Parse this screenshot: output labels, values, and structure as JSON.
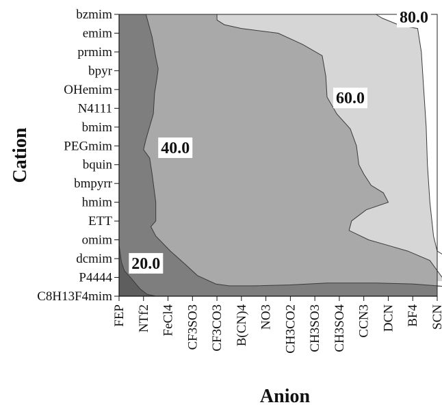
{
  "chart_data": {
    "type": "heatmap",
    "subtype": "filled-contour",
    "xlabel": "Anion",
    "ylabel": "Cation",
    "x_categories": [
      "FEP",
      "NTf2",
      "FeCl4",
      "CF3SO3",
      "CF3CO3",
      "B(CN)4",
      "NO3",
      "CH3CO2",
      "CH3SO3",
      "CH3SO4",
      "CCN3",
      "DCN",
      "BF4",
      "SCN"
    ],
    "y_categories": [
      "bzmim",
      "emim",
      "prmim",
      "bpyr",
      "OHemim",
      "N4111",
      "bmim",
      "PEGmim",
      "bquin",
      "bmpyrr",
      "hmim",
      "ETT",
      "omim",
      "dcmim",
      "P4444",
      "C8H13F4mim"
    ],
    "contour_levels": [
      20.0,
      40.0,
      60.0,
      80.0
    ],
    "level_labels": [
      "20.0",
      "40.0",
      "60.0",
      "80.0"
    ],
    "fill_colors": [
      "#5e5e5e",
      "#7e7e7e",
      "#a9a9a9",
      "#d6d6d6",
      "#ffffff"
    ],
    "boundaries": [
      {
        "level": 20.0,
        "points": [
          [
            0,
            12.3
          ],
          [
            0.05,
            12.75
          ],
          [
            0.1,
            13.2
          ],
          [
            0.22,
            13.65
          ],
          [
            0.5,
            14.05
          ],
          [
            0.85,
            14.6
          ],
          [
            1.15,
            14.9
          ],
          [
            1.5,
            15.0
          ]
        ]
      },
      {
        "level": 40.0,
        "points": [
          [
            1.1,
            0
          ],
          [
            1.35,
            1.2
          ],
          [
            1.5,
            2.3
          ],
          [
            1.6,
            2.9
          ],
          [
            1.55,
            3.4
          ],
          [
            1.45,
            4.2
          ],
          [
            1.4,
            5.3
          ],
          [
            1.1,
            6.65
          ],
          [
            1.0,
            7.2
          ],
          [
            1.25,
            7.65
          ],
          [
            1.35,
            8.5
          ],
          [
            1.45,
            9.5
          ],
          [
            1.5,
            10.0
          ],
          [
            1.5,
            11.0
          ],
          [
            1.3,
            11.3
          ],
          [
            1.5,
            11.8
          ],
          [
            2.1,
            12.6
          ],
          [
            2.7,
            13.3
          ],
          [
            3.2,
            13.9
          ],
          [
            3.95,
            14.35
          ],
          [
            4.5,
            14.45
          ],
          [
            5.5,
            14.45
          ],
          [
            7.0,
            14.4
          ],
          [
            8.5,
            14.3
          ],
          [
            10.5,
            14.3
          ],
          [
            12.0,
            14.35
          ],
          [
            13.0,
            14.45
          ],
          [
            13.5,
            14.5
          ]
        ]
      },
      {
        "level": 60.0,
        "points": [
          [
            4.0,
            0
          ],
          [
            4.0,
            0.3
          ],
          [
            4.3,
            0.55
          ],
          [
            5.0,
            0.75
          ],
          [
            6.5,
            1.0
          ],
          [
            7.5,
            1.6
          ],
          [
            8.3,
            2.2
          ],
          [
            8.45,
            3.3
          ],
          [
            8.5,
            4.4
          ],
          [
            8.9,
            5.3
          ],
          [
            9.45,
            6.1
          ],
          [
            9.7,
            7.0
          ],
          [
            9.8,
            8.0
          ],
          [
            10.0,
            8.5
          ],
          [
            10.3,
            9.1
          ],
          [
            10.8,
            9.5
          ],
          [
            11.0,
            10.0
          ],
          [
            10.1,
            10.4
          ],
          [
            9.5,
            11.0
          ],
          [
            9.4,
            11.5
          ],
          [
            10.2,
            12.0
          ],
          [
            11.0,
            12.3
          ],
          [
            11.8,
            12.6
          ],
          [
            12.7,
            13.1
          ],
          [
            13.2,
            14.0
          ],
          [
            13.5,
            14.2
          ]
        ]
      },
      {
        "level": 80.0,
        "points": [
          [
            10.5,
            0
          ],
          [
            10.75,
            0.2
          ],
          [
            11.5,
            0.6
          ],
          [
            12.2,
            0.75
          ],
          [
            12.35,
            2.0
          ],
          [
            12.45,
            4.0
          ],
          [
            12.55,
            6.0
          ],
          [
            12.6,
            8.0
          ],
          [
            12.7,
            10.0
          ],
          [
            12.85,
            11.8
          ],
          [
            13.0,
            12.6
          ],
          [
            13.5,
            13.0
          ]
        ]
      }
    ],
    "labels": [
      {
        "text": "20.0",
        "x": 0.4,
        "y": 13.25
      },
      {
        "text": "40.0",
        "x": 1.6,
        "y": 7.1
      },
      {
        "text": "60.0",
        "x": 8.75,
        "y": 4.45
      },
      {
        "text": "80.0",
        "x": 11.35,
        "y": 0.15
      }
    ],
    "grid": false,
    "legend": "none"
  }
}
